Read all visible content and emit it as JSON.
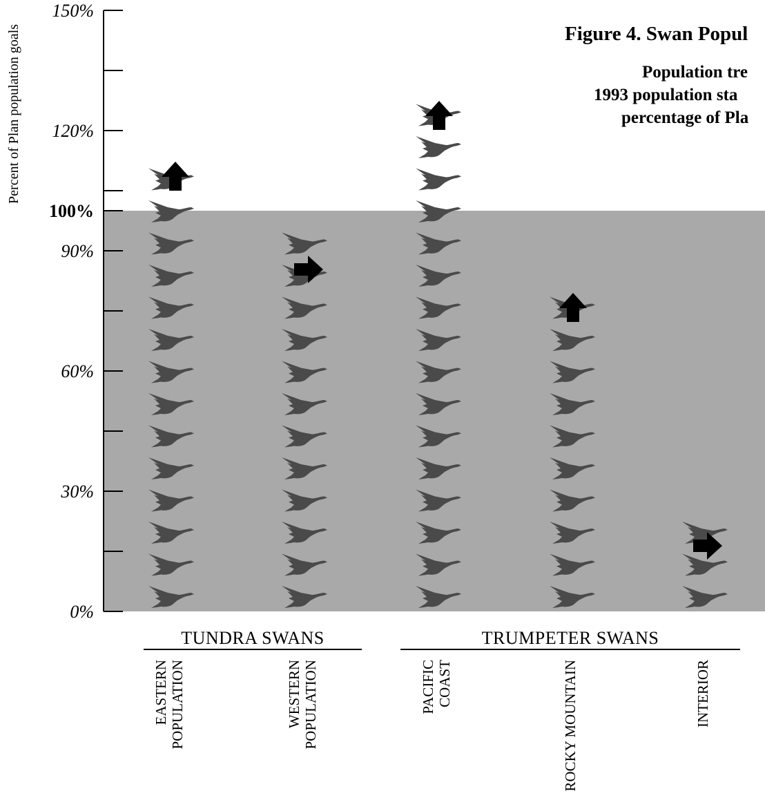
{
  "chart_data": {
    "type": "bar",
    "title": "Figure 4. Swan Popul",
    "subtitle_lines": [
      "Population tre",
      "1993 population sta",
      "percentage of Pla"
    ],
    "ylabel": "Percent of Plan population goals",
    "ylim": [
      0,
      150
    ],
    "yticks": [
      {
        "value": 0,
        "label": "0%",
        "bold": false
      },
      {
        "value": 30,
        "label": "30%",
        "bold": false
      },
      {
        "value": 60,
        "label": "60%",
        "bold": false
      },
      {
        "value": 90,
        "label": "90%",
        "bold": false
      },
      {
        "value": 100,
        "label": "100%",
        "bold": true
      },
      {
        "value": 120,
        "label": "120%",
        "bold": false
      },
      {
        "value": 150,
        "label": "150%",
        "bold": false
      }
    ],
    "minor_ticks": [
      15,
      45,
      75,
      105,
      135
    ],
    "goal_level": 100,
    "shaded_color": "#a9a9a9",
    "swan_color": "#4a4a4a",
    "groups": [
      {
        "label": "TUNDRA SWANS",
        "categories": [
          0,
          1
        ]
      },
      {
        "label": "TRUMPETER SWANS",
        "categories": [
          2,
          3,
          4
        ]
      }
    ],
    "categories": [
      {
        "lines": [
          "EASTERN",
          "POPULATION"
        ],
        "value": 113,
        "trend": "up"
      },
      {
        "lines": [
          "WESTERN",
          "POPULATION"
        ],
        "value": 98,
        "trend": "stable"
      },
      {
        "lines": [
          "PACIFIC",
          "COAST"
        ],
        "value": 131,
        "trend": "up"
      },
      {
        "lines": [
          "ROCKY MOUNTAIN"
        ],
        "value": 84,
        "trend": "up"
      },
      {
        "lines": [
          "INTERIOR"
        ],
        "value": 25,
        "trend": "stable"
      }
    ]
  }
}
